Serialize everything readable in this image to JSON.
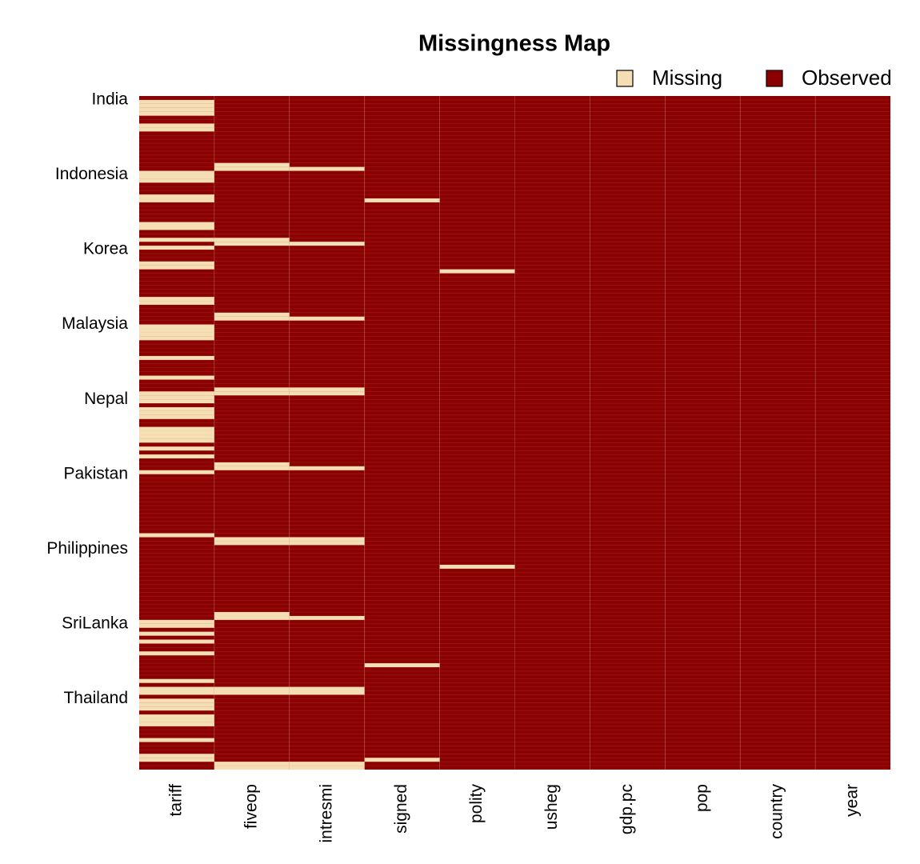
{
  "chart_data": {
    "type": "missingness",
    "title": "Missingness Map",
    "legend": [
      {
        "label": "Missing",
        "color": "#f5deb3"
      },
      {
        "label": "Observed",
        "color": "#8b0000"
      }
    ],
    "columns": [
      "tariff",
      "fiveop",
      "intresmi",
      "signed",
      "polity",
      "usheg",
      "gdp.pc",
      "pop",
      "country",
      "year"
    ],
    "ylim": [
      0,
      171
    ],
    "yticks": [
      {
        "value": 0,
        "label": "India"
      },
      {
        "value": 19,
        "label": "Indonesia"
      },
      {
        "value": 38,
        "label": "Korea"
      },
      {
        "value": 57,
        "label": "Malaysia"
      },
      {
        "value": 76,
        "label": "Nepal"
      },
      {
        "value": 95,
        "label": "Pakistan"
      },
      {
        "value": 114,
        "label": "Philippines"
      },
      {
        "value": 133,
        "label": "SriLanka"
      },
      {
        "value": 152,
        "label": "Thailand"
      }
    ],
    "missing": [
      [
        1,
        2,
        3,
        4,
        7,
        8,
        19,
        20,
        21,
        25,
        26,
        32,
        33,
        36,
        38,
        42,
        43,
        51,
        52,
        58,
        59,
        60,
        61,
        66,
        71,
        75,
        76,
        77,
        79,
        80,
        81,
        84,
        85,
        86,
        87,
        89,
        91,
        95,
        111,
        133,
        134,
        136,
        138,
        141,
        148,
        150,
        151,
        153,
        154,
        155,
        157,
        158,
        159,
        163,
        167,
        168
      ],
      [
        17,
        18,
        36,
        37,
        55,
        56,
        74,
        75,
        93,
        94,
        112,
        113,
        131,
        132,
        150,
        151,
        169,
        170
      ],
      [
        18,
        37,
        56,
        74,
        75,
        94,
        112,
        113,
        132,
        150,
        151,
        169,
        170
      ],
      [
        26,
        144,
        168
      ],
      [
        44,
        119
      ],
      [],
      [],
      [],
      [],
      []
    ]
  }
}
